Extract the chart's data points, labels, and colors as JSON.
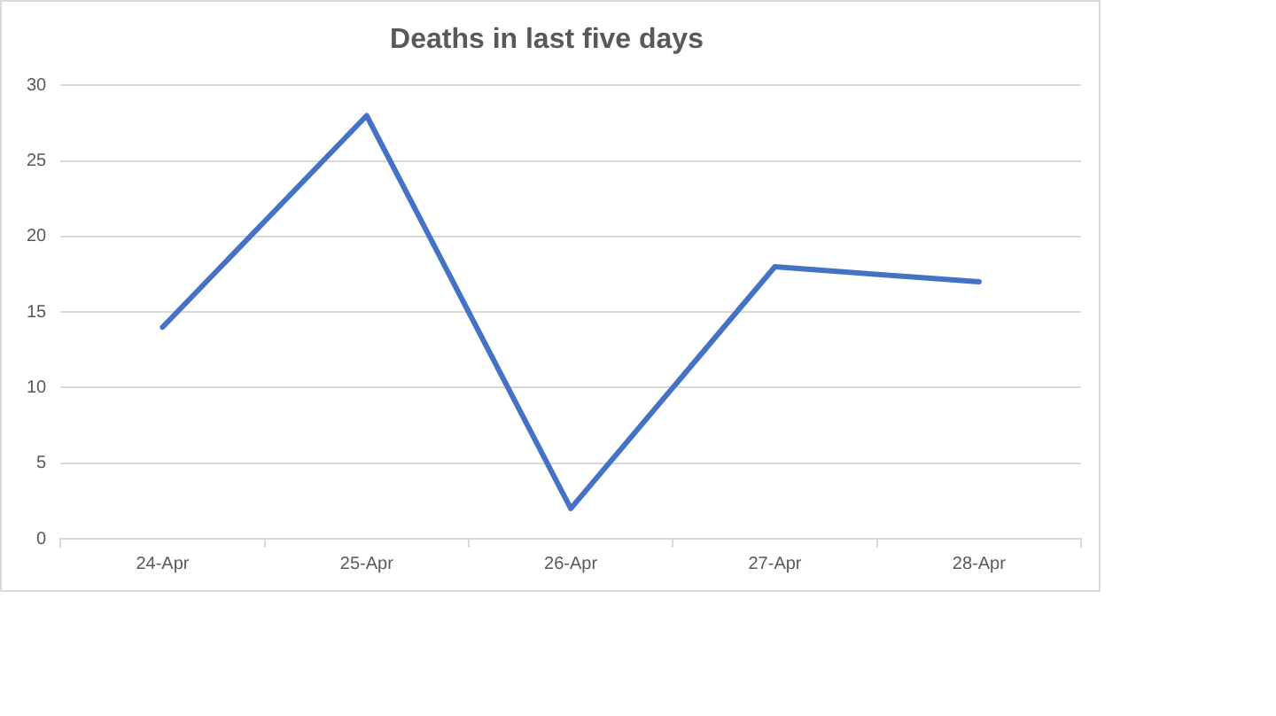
{
  "chart_data": {
    "type": "line",
    "title": "Deaths in last five days",
    "categories": [
      "24-Apr",
      "25-Apr",
      "26-Apr",
      "27-Apr",
      "28-Apr"
    ],
    "series": [
      {
        "color": "#4472c4",
        "values": [
          14,
          28,
          2,
          18,
          17
        ]
      }
    ],
    "ylim": [
      0,
      30
    ],
    "yticks": [
      0,
      5,
      10,
      15,
      20,
      25,
      30
    ],
    "grid": "y",
    "legend": false,
    "marker": "none",
    "line_style": "solid"
  }
}
